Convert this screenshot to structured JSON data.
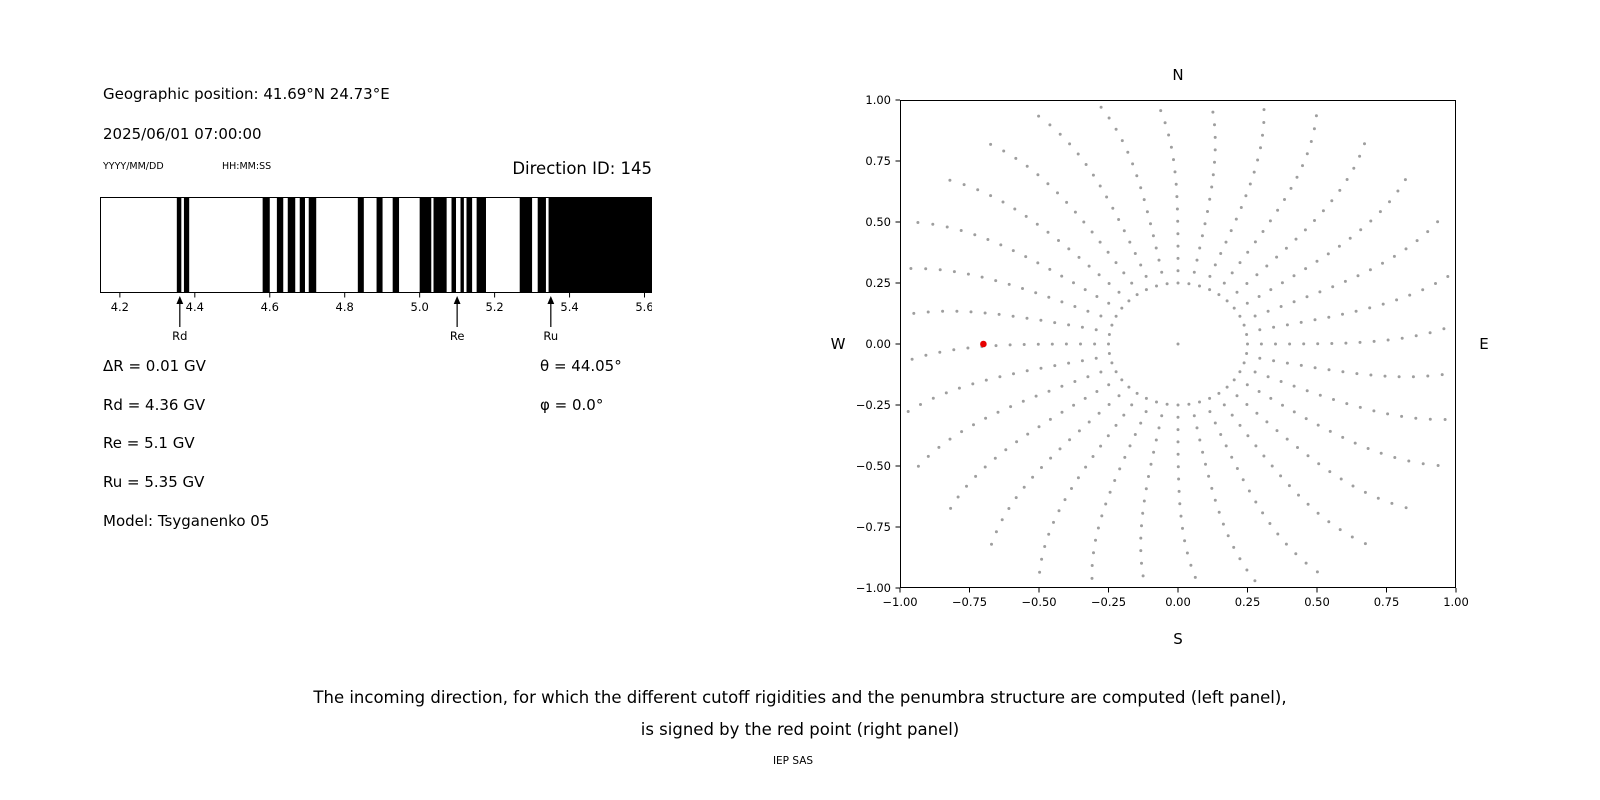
{
  "colors": {
    "background": "#ffffff",
    "text": "#000000",
    "band": "#000000",
    "grey_dot": "#9e9e9e",
    "red_point": "#e60000"
  },
  "info_panel": {
    "geo_position": "Geographic position: 41.69°N 24.73°E",
    "datetime": "2025/06/01 07:00:00",
    "date_format_hint": "YYYY/MM/DD",
    "time_format_hint": "HH:MM:SS",
    "direction_id": "Direction ID: 145",
    "delta_r": "ΔR = 0.01 GV",
    "rd": "Rd = 4.36 GV",
    "re": "Re = 5.1 GV",
    "ru": "Ru = 5.35 GV",
    "model": "Model: Tsyganenko 05",
    "theta": "θ = 44.05°",
    "phi": "φ = 0.0°"
  },
  "footer": {
    "caption_line1": "The incoming direction, for which the different cutoff rigidities and the penumbra structure are computed (left panel),",
    "caption_line2": "is signed by the red point (right panel)",
    "credit": "IEP SAS"
  },
  "chart_data": [
    {
      "id": "penumbra",
      "type": "bar",
      "description": "Penumbra structure: black bands are forbidden rigidity intervals in GV",
      "axis_range_gv": [
        4.147,
        5.62
      ],
      "xticks": [
        4.2,
        4.4,
        4.6,
        4.8,
        5.0,
        5.2,
        5.4,
        5.6
      ],
      "bands_gv": [
        [
          4.352,
          4.364
        ],
        [
          4.371,
          4.385
        ],
        [
          4.581,
          4.6
        ],
        [
          4.619,
          4.636
        ],
        [
          4.648,
          4.668
        ],
        [
          4.68,
          4.694
        ],
        [
          4.704,
          4.724
        ],
        [
          4.835,
          4.851
        ],
        [
          4.885,
          4.901
        ],
        [
          4.928,
          4.945
        ],
        [
          5.0,
          5.031
        ],
        [
          5.037,
          5.072
        ],
        [
          5.085,
          5.097
        ],
        [
          5.109,
          5.118
        ],
        [
          5.125,
          5.14
        ],
        [
          5.152,
          5.177
        ],
        [
          5.267,
          5.3
        ],
        [
          5.315,
          5.337
        ],
        [
          5.344,
          5.62
        ]
      ],
      "markers": [
        {
          "label": "Rd",
          "value_gv": 4.36
        },
        {
          "label": "Re",
          "value_gv": 5.1
        },
        {
          "label": "Ru",
          "value_gv": 5.35
        }
      ]
    },
    {
      "id": "direction-map",
      "type": "scatter",
      "description": "Map of incoming directions: grey dots = scanned directions, red dot = selected direction ID 145",
      "xlim": [
        -1.0,
        1.0
      ],
      "ylim": [
        -1.0,
        1.0
      ],
      "xticks": [
        -1.0,
        -0.75,
        -0.5,
        -0.25,
        0.0,
        0.25,
        0.5,
        0.75,
        1.0
      ],
      "yticks": [
        -1.0,
        -0.75,
        -0.5,
        -0.25,
        0.0,
        0.25,
        0.5,
        0.75,
        1.0
      ],
      "compass": {
        "top": "N",
        "bottom": "S",
        "left": "W",
        "right": "E"
      },
      "red_point": {
        "x": -0.7,
        "y": 0.0
      },
      "grey_pattern": {
        "spokes": 32,
        "inner_ring_radius": 0.25,
        "inner_ring_dots": 40,
        "spoke_r_start": 0.3,
        "spoke_r_end": 1.06,
        "dots_per_spoke": 16,
        "curvature_rad": 0.1,
        "center_dot": true
      }
    }
  ]
}
